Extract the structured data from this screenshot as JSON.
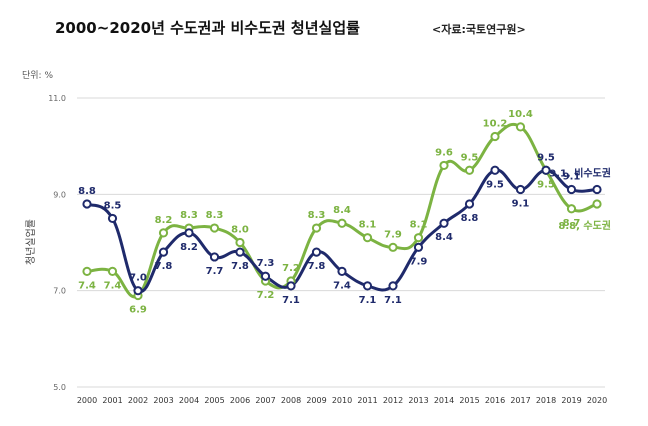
{
  "chart_data": {
    "type": "line",
    "title": "2000~2020년 수도권과 비수도권 청년실업률",
    "source": "<자료:국토연구원>",
    "unit_label": "단위: %",
    "ylabel": "청년실업률",
    "xlabel": "",
    "ylim": [
      5.0,
      11.0
    ],
    "yticks": [
      "5.0",
      "7.0",
      "9.0",
      "11.0"
    ],
    "ytick_values": [
      5.0,
      7.0,
      9.0,
      11.0
    ],
    "grid": true,
    "categories": [
      "2000",
      "2001",
      "2002",
      "2003",
      "2004",
      "2005",
      "2006",
      "2007",
      "2008",
      "2009",
      "2010",
      "2011",
      "2012",
      "2013",
      "2014",
      "2015",
      "2016",
      "2017",
      "2018",
      "2019",
      "2020"
    ],
    "series": [
      {
        "name": "비수도권",
        "end_label": "9.1, 비수도권",
        "color": "#1f2a6b",
        "values": [
          8.8,
          8.5,
          7.0,
          7.8,
          8.2,
          7.7,
          7.8,
          7.3,
          7.1,
          7.8,
          7.4,
          7.1,
          7.1,
          7.9,
          8.4,
          8.8,
          9.5,
          9.1,
          9.5,
          9.1,
          9.1
        ],
        "labels": [
          "8.8",
          "8.5",
          "7.0",
          "7.8",
          "8.2",
          "7.7",
          "7.8",
          "7.3",
          "7.1",
          "7.8",
          "7.4",
          "7.1",
          "7.1",
          "7.9",
          "8.4",
          "8.8",
          "9.5",
          "9.1",
          "9.5",
          "9.1",
          ""
        ]
      },
      {
        "name": "수도권",
        "end_label": "8.8, 수도권",
        "color": "#7cb342",
        "values": [
          7.4,
          7.4,
          6.9,
          8.2,
          8.3,
          8.3,
          8.0,
          7.2,
          7.2,
          8.3,
          8.4,
          8.1,
          7.9,
          8.1,
          9.6,
          9.5,
          10.2,
          10.4,
          9.5,
          8.7,
          8.8
        ],
        "labels": [
          "7.4",
          "7.4",
          "6.9",
          "8.2",
          "8.3",
          "8.3",
          "8.0",
          "7.2",
          "7.2",
          "8.3",
          "8.4",
          "8.1",
          "7.9",
          "8.1",
          "9.6",
          "9.5",
          "10.2",
          "10.4",
          "9.5",
          "8.7",
          ""
        ]
      }
    ]
  }
}
